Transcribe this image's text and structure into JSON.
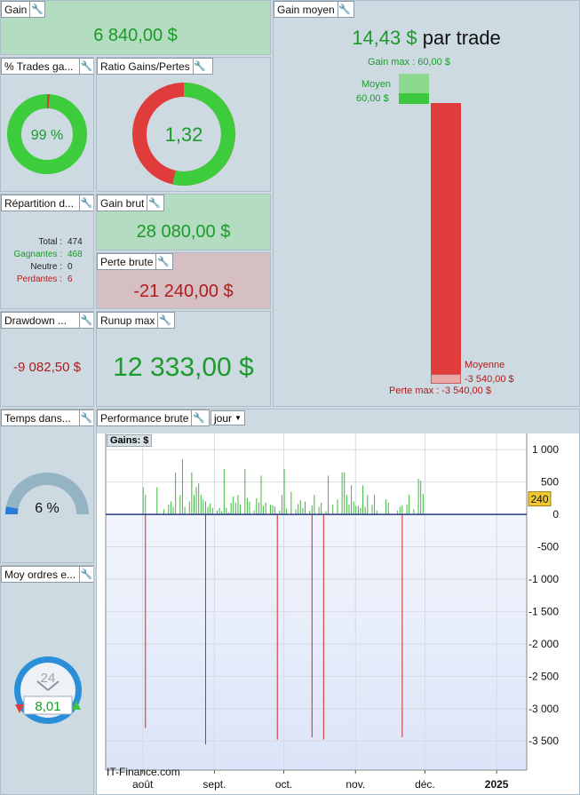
{
  "colors": {
    "green": "#1c9a2a",
    "red": "#b01c1c",
    "bar_red": "#e03c3c",
    "bar_green": "#3cc83c"
  },
  "gain": {
    "title": "Gain",
    "value": "6 840,00 $"
  },
  "pct_trades": {
    "title": "% Trades ga...",
    "value": "99 %",
    "fraction": 0.99
  },
  "ratio": {
    "title": "Ratio Gains/Pertes",
    "value": "1,32",
    "fraction_green": 0.57
  },
  "repartition": {
    "title": "Répartition d...",
    "rows": [
      {
        "label": "Total :",
        "value": "474"
      },
      {
        "label": "Gagnantes :",
        "value": "468"
      },
      {
        "label": "Neutre :",
        "value": "0"
      },
      {
        "label": "Perdantes :",
        "value": "6"
      }
    ]
  },
  "gain_brut": {
    "title": "Gain brut",
    "value": "28 080,00 $"
  },
  "perte_brute": {
    "title": "Perte brute",
    "value": "-21 240,00 $"
  },
  "drawdown": {
    "title": "Drawdown ...",
    "value": "-9 082,50 $"
  },
  "runup": {
    "title": "Runup max",
    "value": "12 333,00 $"
  },
  "gain_moyen": {
    "title": "Gain moyen",
    "value": "14,43 $",
    "suffix": "par trade",
    "gain_max_label": "Gain max : 60,00 $",
    "moyen_label": "Moyen",
    "moyen_value": "60,00 $",
    "moyenne_label": "Moyenne",
    "moyenne_value": "-3 540,00 $",
    "perte_max_label": "Perte max : -3 540,00 $"
  },
  "temps": {
    "title": "Temps dans...",
    "value": "6 %",
    "fraction": 0.06
  },
  "moy_ordres": {
    "title": "Moy ordres e...",
    "value": "8,01",
    "clock_label": "24"
  },
  "perf": {
    "title": "Performance brute",
    "period": "jour",
    "legend": "Gains: $",
    "watermark": "IT-Finance.com",
    "current_value": "240"
  },
  "chart_data": {
    "type": "bar",
    "y_ticks": [
      "1 000",
      "500",
      "0",
      "-500",
      "-1 000",
      "-1 500",
      "-2 000",
      "-2 500",
      "-3 000",
      "-3 500"
    ],
    "y_tick_values": [
      1000,
      500,
      0,
      -500,
      -1000,
      -1500,
      -2000,
      -2500,
      -3000,
      -3500
    ],
    "ylim": [
      -3950,
      1250
    ],
    "x_ticks": [
      "août",
      "sept.",
      "oct.",
      "nov.",
      "déc.",
      "2025"
    ],
    "x_tick_days": [
      11,
      42,
      72,
      103,
      133,
      164
    ],
    "xlim": [
      -5,
      177
    ],
    "gains": [
      [
        11,
        420
      ],
      [
        12,
        300
      ],
      [
        17,
        420
      ],
      [
        20,
        80
      ],
      [
        22,
        150
      ],
      [
        23,
        200
      ],
      [
        24,
        120
      ],
      [
        25,
        650
      ],
      [
        27,
        300
      ],
      [
        28,
        850
      ],
      [
        29,
        120
      ],
      [
        31,
        200
      ],
      [
        32,
        650
      ],
      [
        33,
        300
      ],
      [
        34,
        420
      ],
      [
        35,
        480
      ],
      [
        36,
        300
      ],
      [
        37,
        230
      ],
      [
        38,
        200
      ],
      [
        39,
        120
      ],
      [
        40,
        170
      ],
      [
        41,
        100
      ],
      [
        43,
        60
      ],
      [
        44,
        100
      ],
      [
        45,
        50
      ],
      [
        46,
        700
      ],
      [
        47,
        100
      ],
      [
        48,
        30
      ],
      [
        49,
        180
      ],
      [
        50,
        280
      ],
      [
        51,
        180
      ],
      [
        52,
        300
      ],
      [
        53,
        150
      ],
      [
        55,
        700
      ],
      [
        56,
        250
      ],
      [
        57,
        200
      ],
      [
        59,
        60
      ],
      [
        60,
        250
      ],
      [
        61,
        180
      ],
      [
        62,
        600
      ],
      [
        63,
        130
      ],
      [
        64,
        180
      ],
      [
        66,
        150
      ],
      [
        67,
        140
      ],
      [
        68,
        120
      ],
      [
        70,
        60
      ],
      [
        71,
        300
      ],
      [
        72,
        700
      ],
      [
        73,
        90
      ],
      [
        75,
        350
      ],
      [
        77,
        80
      ],
      [
        78,
        160
      ],
      [
        79,
        220
      ],
      [
        80,
        100
      ],
      [
        81,
        200
      ],
      [
        83,
        60
      ],
      [
        84,
        140
      ],
      [
        85,
        300
      ],
      [
        87,
        120
      ],
      [
        88,
        180
      ],
      [
        90,
        50
      ],
      [
        91,
        600
      ],
      [
        93,
        150
      ],
      [
        95,
        230
      ],
      [
        97,
        650
      ],
      [
        98,
        650
      ],
      [
        99,
        300
      ],
      [
        100,
        150
      ],
      [
        101,
        450
      ],
      [
        102,
        200
      ],
      [
        103,
        130
      ],
      [
        104,
        130
      ],
      [
        105,
        100
      ],
      [
        106,
        450
      ],
      [
        107,
        120
      ],
      [
        108,
        300
      ],
      [
        110,
        150
      ],
      [
        111,
        300
      ],
      [
        112,
        60
      ],
      [
        116,
        230
      ],
      [
        117,
        180
      ],
      [
        121,
        60
      ],
      [
        122,
        120
      ],
      [
        123,
        140
      ],
      [
        125,
        150
      ],
      [
        126,
        300
      ],
      [
        128,
        80
      ],
      [
        130,
        550
      ],
      [
        131,
        520
      ],
      [
        132,
        320
      ]
    ],
    "losses": [
      [
        12,
        -3300
      ],
      [
        38,
        -3550
      ],
      [
        69,
        -3480
      ],
      [
        84,
        -3440
      ],
      [
        89,
        -3480
      ],
      [
        123,
        -3440
      ]
    ]
  }
}
